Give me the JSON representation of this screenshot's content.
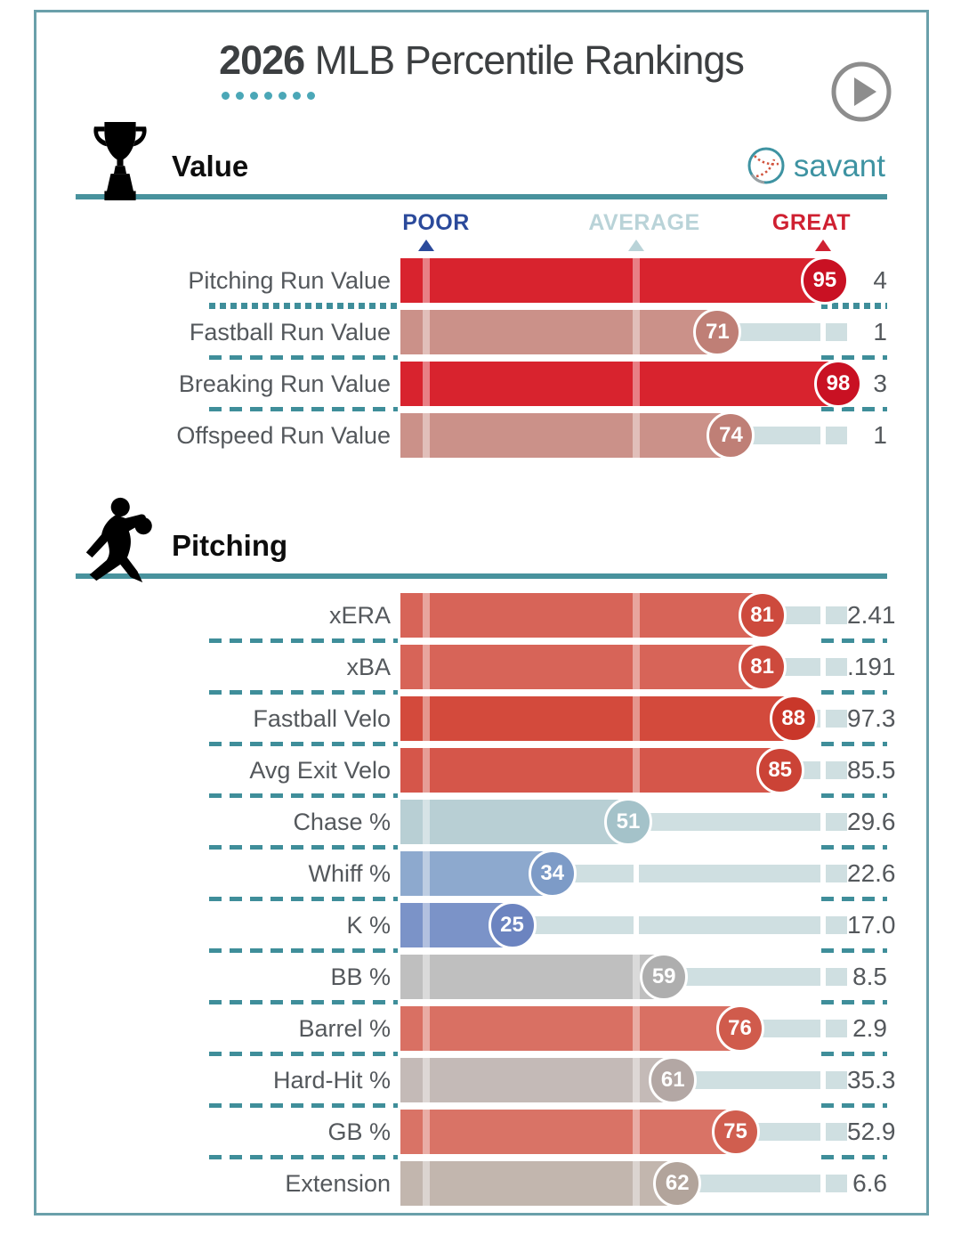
{
  "header": {
    "year": "2026",
    "title_rest": " MLB Percentile Rankings",
    "play_icon": "play-icon"
  },
  "brand": {
    "name": "savant",
    "ball_icon": "baseball-icon",
    "color": "#3e93a2"
  },
  "scale_legend": {
    "poor_label": "POOR",
    "average_label": "AVERAGE",
    "great_label": "GREAT",
    "poor_color": "#2b4a9b",
    "average_color": "#b9d3d8",
    "great_color": "#cf2031",
    "poor_percentile": 5,
    "average_percentile": 50,
    "great_percentile": 95
  },
  "accent_colors": {
    "page_border": "#6aa0aa",
    "section_line": "#48929d",
    "separator_dash": "#3f8e9a",
    "title_dots": "#4ba7b7",
    "remainder_track": "#cfdfe1",
    "text": "#54585c"
  },
  "sections": [
    {
      "id": "value",
      "title": "Value",
      "icon": "trophy-icon",
      "rows": [
        {
          "label": "Pitching Run Value",
          "percentile": 95,
          "value": "4",
          "fill": "#d8232e",
          "badge": "#c91123",
          "sep_after": "dotted"
        },
        {
          "label": "Fastball Run Value",
          "percentile": 71,
          "value": "1",
          "fill": "#cb9189",
          "badge": "#bf7f76",
          "sep_after": "dashed"
        },
        {
          "label": "Breaking Run Value",
          "percentile": 98,
          "value": "3",
          "fill": "#d8232e",
          "badge": "#c91123",
          "sep_after": "dashed"
        },
        {
          "label": "Offspeed Run Value",
          "percentile": 74,
          "value": "1",
          "fill": "#cb9189",
          "badge": "#bf7f76",
          "sep_after": "none"
        }
      ]
    },
    {
      "id": "pitching",
      "title": "Pitching",
      "icon": "pitcher-icon",
      "rows": [
        {
          "label": "xERA",
          "percentile": 81,
          "value": "2.41",
          "fill": "#d76458",
          "badge": "#cd4a3d",
          "sep_after": "dashed"
        },
        {
          "label": "xBA",
          "percentile": 81,
          "value": ".191",
          "fill": "#d76458",
          "badge": "#cd4a3d",
          "sep_after": "dashed"
        },
        {
          "label": "Fastball Velo",
          "percentile": 88,
          "value": "97.3",
          "fill": "#d34a3c",
          "badge": "#c9372a",
          "sep_after": "dashed"
        },
        {
          "label": "Avg Exit Velo",
          "percentile": 85,
          "value": "85.5",
          "fill": "#d5564a",
          "badge": "#cb4336",
          "sep_after": "dashed"
        },
        {
          "label": "Chase %",
          "percentile": 51,
          "value": "29.6",
          "fill": "#b8cfd4",
          "badge": "#a4c2c9",
          "sep_after": "dashed"
        },
        {
          "label": "Whiff %",
          "percentile": 34,
          "value": "22.6",
          "fill": "#8da9ce",
          "badge": "#7d9bc7",
          "sep_after": "dashed"
        },
        {
          "label": "K %",
          "percentile": 25,
          "value": "17.0",
          "fill": "#7b93c8",
          "badge": "#6c84c0",
          "sep_after": "dashed"
        },
        {
          "label": "BB %",
          "percentile": 59,
          "value": "8.5",
          "fill": "#bfbfbf",
          "badge": "#aeaeae",
          "sep_after": "dashed"
        },
        {
          "label": "Barrel %",
          "percentile": 76,
          "value": "2.9",
          "fill": "#d97063",
          "badge": "#d05b4c",
          "sep_after": "dashed"
        },
        {
          "label": "Hard-Hit %",
          "percentile": 61,
          "value": "35.3",
          "fill": "#c4bab7",
          "badge": "#b3a7a4",
          "sep_after": "dashed"
        },
        {
          "label": "GB %",
          "percentile": 75,
          "value": "52.9",
          "fill": "#d97366",
          "badge": "#d05e4f",
          "sep_after": "dashed"
        },
        {
          "label": "Extension",
          "percentile": 62,
          "value": "6.6",
          "fill": "#c2b6ae",
          "badge": "#b2a49b",
          "sep_after": "none"
        }
      ]
    }
  ],
  "chart_data": [
    {
      "type": "bar",
      "title": "Value",
      "categories": [
        "Pitching Run Value",
        "Fastball Run Value",
        "Breaking Run Value",
        "Offspeed Run Value"
      ],
      "series": [
        {
          "name": "percentile",
          "values": [
            95,
            71,
            98,
            74
          ]
        },
        {
          "name": "stat_value",
          "values": [
            "4",
            "1",
            "3",
            "1"
          ]
        }
      ],
      "xlim": [
        0,
        100
      ],
      "markers": {
        "POOR": 5,
        "AVERAGE": 50,
        "GREAT": 95
      },
      "legend_position": "top",
      "grid": false
    },
    {
      "type": "bar",
      "title": "Pitching",
      "categories": [
        "xERA",
        "xBA",
        "Fastball Velo",
        "Avg Exit Velo",
        "Chase %",
        "Whiff %",
        "K %",
        "BB %",
        "Barrel %",
        "Hard-Hit %",
        "GB %",
        "Extension"
      ],
      "series": [
        {
          "name": "percentile",
          "values": [
            81,
            81,
            88,
            85,
            51,
            34,
            25,
            59,
            76,
            61,
            75,
            62
          ]
        },
        {
          "name": "stat_value",
          "values": [
            "2.41",
            ".191",
            "97.3",
            "85.5",
            "29.6",
            "22.6",
            "17.0",
            "8.5",
            "2.9",
            "35.3",
            "52.9",
            "6.6"
          ]
        }
      ],
      "xlim": [
        0,
        100
      ],
      "markers": {
        "POOR": 5,
        "AVERAGE": 50,
        "GREAT": 95
      },
      "grid": false
    }
  ]
}
